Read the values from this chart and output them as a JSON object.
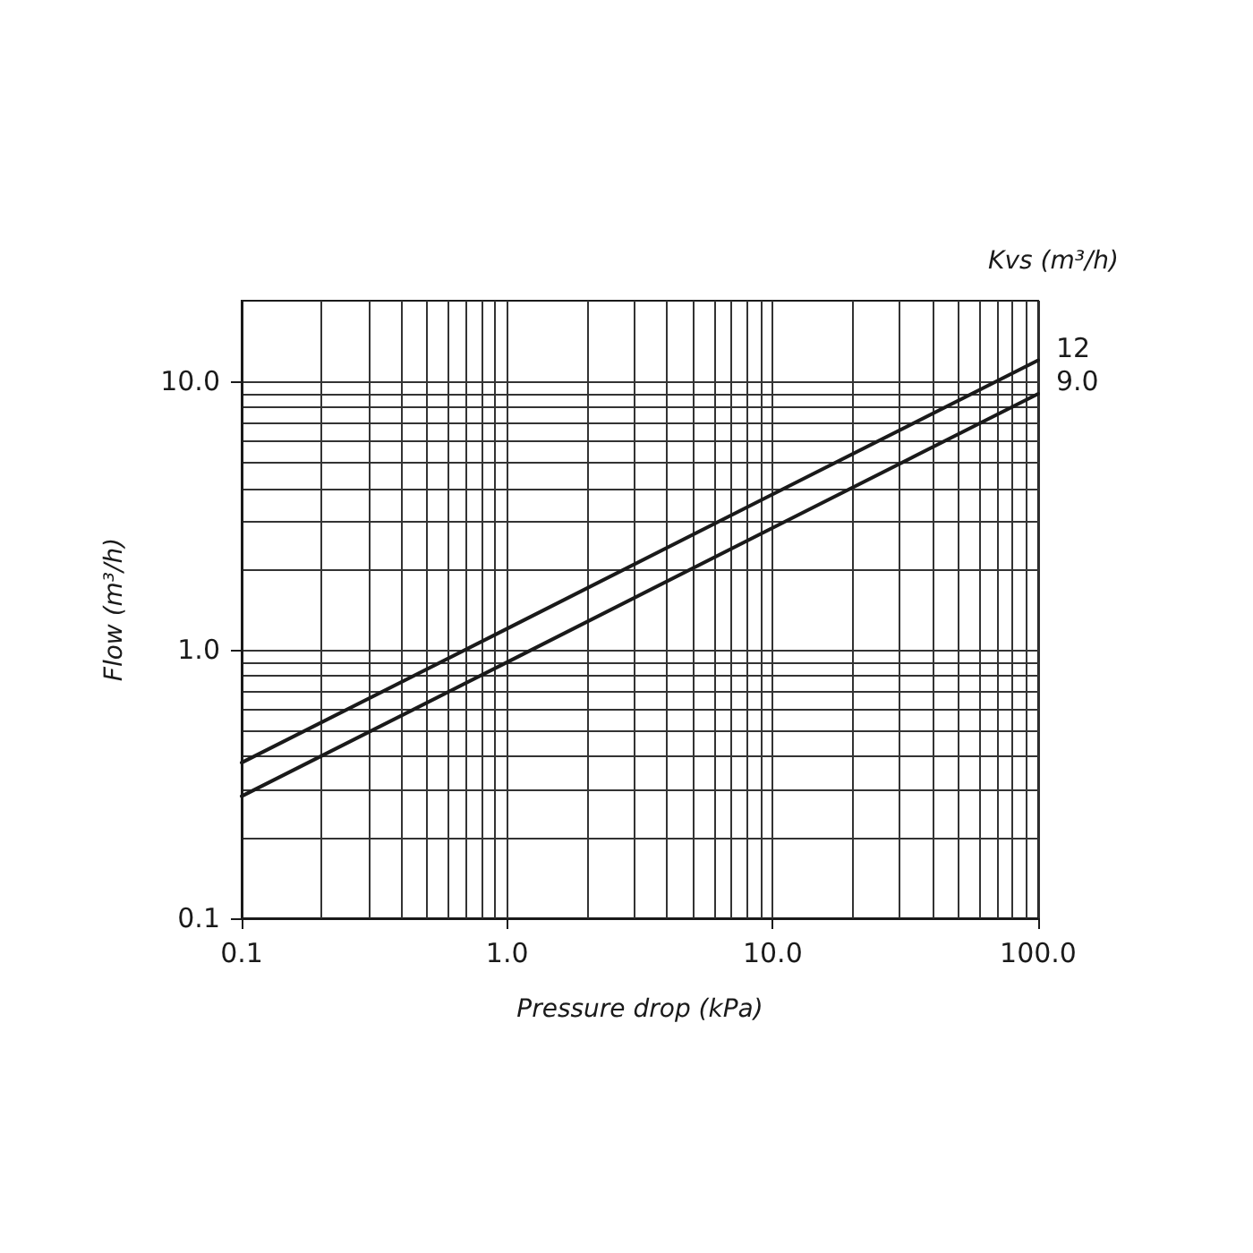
{
  "chart_data": {
    "type": "line",
    "xlabel": "Pressure drop (kPa)",
    "ylabel": "Flow (m³/h)",
    "legend_title": "Kvs (m³/h)",
    "x": [
      0.1,
      1,
      10,
      100
    ],
    "series": [
      {
        "name": "12",
        "color": "#1a1a1a",
        "values": [
          0.38,
          1.2,
          3.8,
          12
        ]
      },
      {
        "name": "9.0",
        "color": "#1a1a1a",
        "values": [
          0.285,
          0.9,
          2.85,
          9.0
        ]
      }
    ],
    "log": "xy",
    "xlim": [
      0.1,
      100
    ],
    "ylim": [
      0.1,
      20
    ],
    "xticks": [
      0.1,
      {
        "value": 0.2,
        "label": null
      },
      {
        "value": 0.3,
        "label": null
      },
      {
        "value": 0.4,
        "label": null
      },
      {
        "value": 0.5,
        "label": null
      },
      {
        "value": 0.6,
        "label": null
      },
      {
        "value": 0.7,
        "label": null
      },
      {
        "value": 0.8,
        "label": null
      },
      {
        "value": 0.9,
        "label": null
      },
      {
        "value": 1,
        "label": "1.0"
      },
      {
        "value": 2,
        "label": null
      },
      {
        "value": 3,
        "label": null
      },
      {
        "value": 4,
        "label": null
      },
      {
        "value": 5,
        "label": null
      },
      {
        "value": 6,
        "label": null
      },
      {
        "value": 7,
        "label": null
      },
      {
        "value": 8,
        "label": null
      },
      {
        "value": 9,
        "label": null
      },
      {
        "value": 10,
        "label": "10.0"
      },
      {
        "value": 20,
        "label": null
      },
      {
        "value": 30,
        "label": null
      },
      {
        "value": 40,
        "label": null
      },
      {
        "value": 50,
        "label": null
      },
      {
        "value": 60,
        "label": null
      },
      {
        "value": 70,
        "label": null
      },
      {
        "value": 80,
        "label": null
      },
      {
        "value": 90,
        "label": null
      },
      {
        "value": 100,
        "label": "100.0"
      }
    ],
    "yticks": [
      0.1,
      {
        "value": 0.2,
        "label": null
      },
      {
        "value": 0.3,
        "label": null
      },
      {
        "value": 0.4,
        "label": null
      },
      {
        "value": 0.5,
        "label": null
      },
      {
        "value": 0.6,
        "label": null
      },
      {
        "value": 0.7,
        "label": null
      },
      {
        "value": 0.8,
        "label": null
      },
      {
        "value": 0.9,
        "label": null
      },
      {
        "value": 1,
        "label": "1.0"
      },
      {
        "value": 2,
        "label": null
      },
      {
        "value": 3,
        "label": null
      },
      {
        "value": 4,
        "label": null
      },
      {
        "value": 5,
        "label": null
      },
      {
        "value": 6,
        "label": null
      },
      {
        "value": 7,
        "label": null
      },
      {
        "value": 8,
        "label": null
      },
      {
        "value": 9,
        "label": null
      },
      {
        "value": 10,
        "label": "10.0"
      }
    ],
    "grid": true,
    "marker": "none",
    "line_style": "solid"
  }
}
